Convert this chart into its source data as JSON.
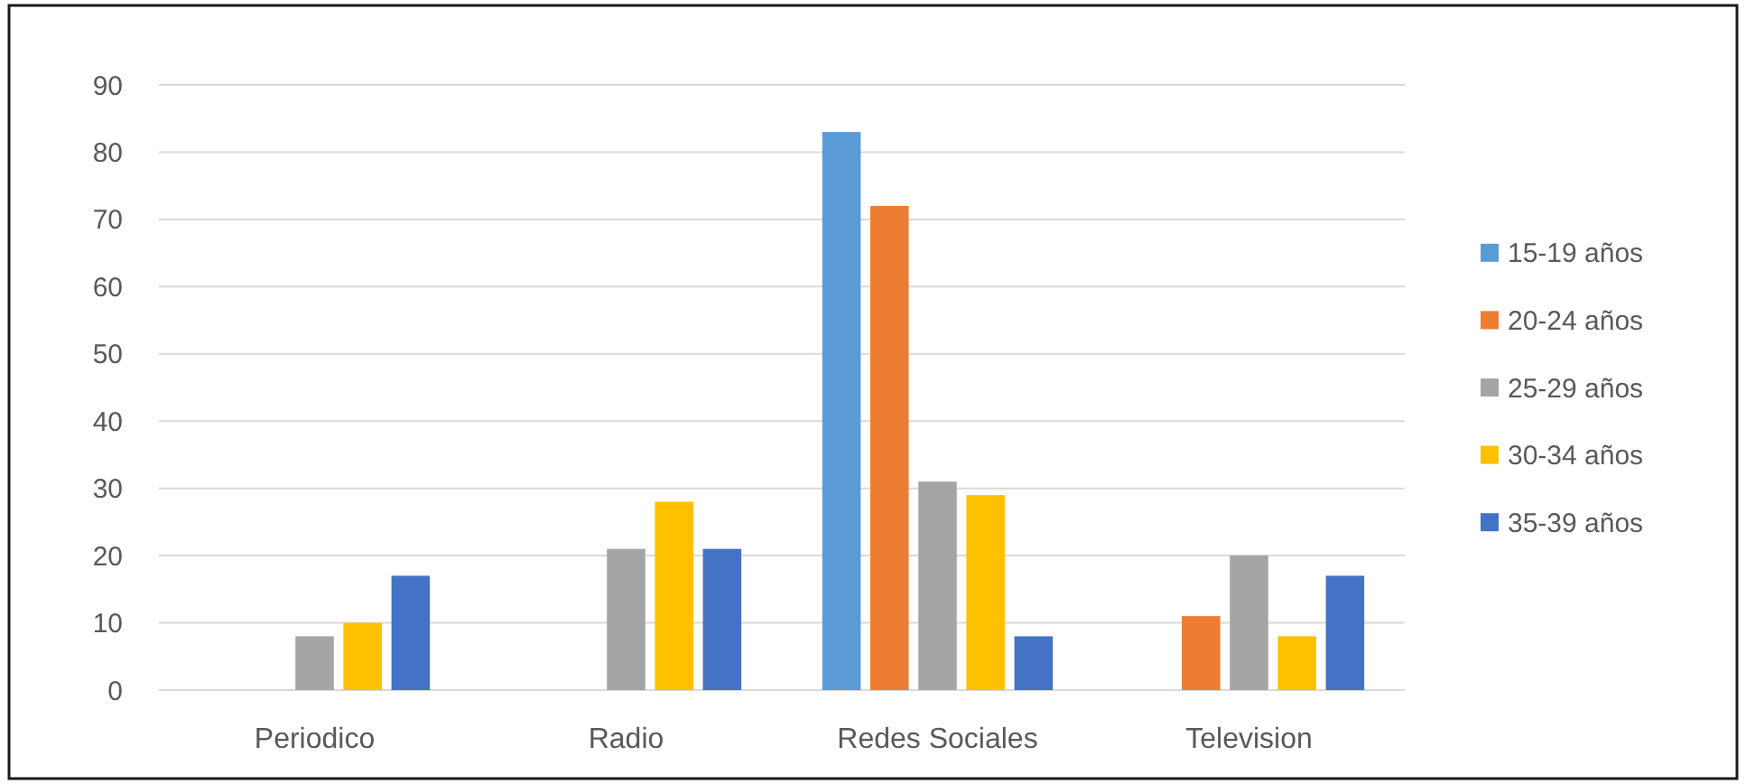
{
  "chart_data": {
    "type": "bar",
    "categories": [
      "Periodico",
      "Radio",
      "Redes Sociales",
      "Television"
    ],
    "series": [
      {
        "name": "15-19 años",
        "color": "#5b9bd5",
        "values": [
          null,
          null,
          83,
          null
        ]
      },
      {
        "name": "20-24 años",
        "color": "#ed7d31",
        "values": [
          null,
          null,
          72,
          11
        ]
      },
      {
        "name": "25-29 años",
        "color": "#a5a5a5",
        "values": [
          8,
          21,
          31,
          20
        ]
      },
      {
        "name": "30-34 años",
        "color": "#ffc000",
        "values": [
          10,
          28,
          29,
          8
        ]
      },
      {
        "name": "35-39 años",
        "color": "#4472c4",
        "values": [
          17,
          21,
          8,
          17
        ]
      }
    ],
    "ylim": [
      0,
      90
    ],
    "yticks": [
      0,
      10,
      20,
      30,
      40,
      50,
      60,
      70,
      80,
      90
    ],
    "grid": "y",
    "legend": "right"
  }
}
